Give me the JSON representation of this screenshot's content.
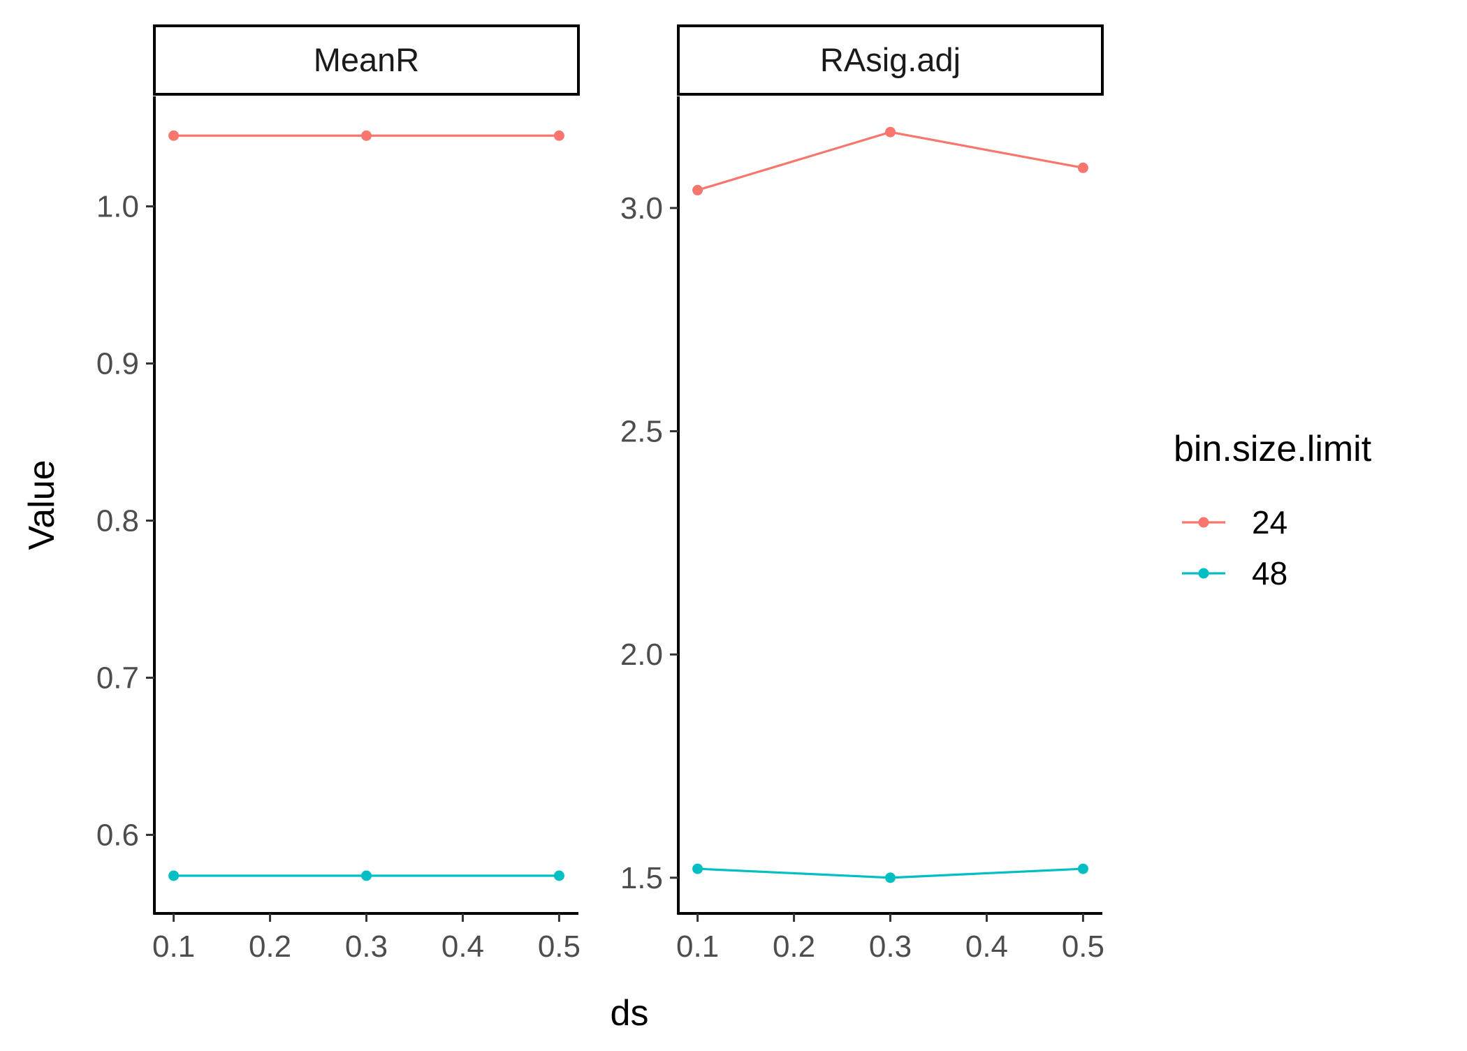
{
  "chart_data": {
    "type": "line",
    "xlabel": "ds",
    "ylabel": "Value",
    "x": [
      0.1,
      0.3,
      0.5
    ],
    "xlim": [
      0.08,
      0.52
    ],
    "x_ticks": [
      0.1,
      0.2,
      0.3,
      0.4,
      0.5
    ],
    "x_tick_labels": [
      "0.1",
      "0.2",
      "0.3",
      "0.4",
      "0.5"
    ],
    "grid": false,
    "legend": {
      "title": "bin.size.limit",
      "position": "right",
      "entries": [
        "24",
        "48"
      ]
    },
    "colors": {
      "24": "#F8766D",
      "48": "#00BFC4"
    },
    "facets": [
      {
        "label": "MeanR",
        "ylim": [
          0.55,
          1.07
        ],
        "y_ticks": [
          0.6,
          0.7,
          0.8,
          0.9,
          1.0
        ],
        "y_tick_labels": [
          "0.6",
          "0.7",
          "0.8",
          "0.9",
          "1.0"
        ],
        "series": [
          {
            "name": "24",
            "values": [
              1.045,
              1.045,
              1.045
            ]
          },
          {
            "name": "48",
            "values": [
              0.574,
              0.574,
              0.574
            ]
          }
        ]
      },
      {
        "label": "RAsig.adj",
        "ylim": [
          1.42,
          3.25
        ],
        "y_ticks": [
          1.5,
          2.0,
          2.5,
          3.0
        ],
        "y_tick_labels": [
          "1.5",
          "2.0",
          "2.5",
          "3.0"
        ],
        "series": [
          {
            "name": "24",
            "values": [
              3.04,
              3.17,
              3.09
            ]
          },
          {
            "name": "48",
            "values": [
              1.52,
              1.5,
              1.52
            ]
          }
        ]
      }
    ]
  }
}
